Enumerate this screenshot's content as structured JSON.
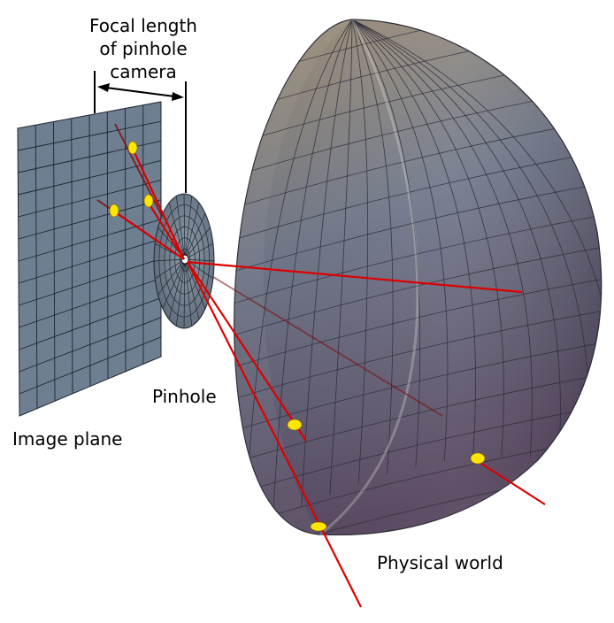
{
  "labels": {
    "focal_line1": "Focal length",
    "focal_line2": "of pinhole",
    "focal_line3": "camera",
    "pinhole": "Pinhole",
    "image_plane": "Image plane",
    "physical_world": "Physical world"
  },
  "colors": {
    "image_plane_fill": "#6f7f92",
    "grid_line": "#1e2630",
    "pinhole_disk": "#7a8796",
    "sphere_top": "#9b8b74",
    "sphere_mid": "#6e7189",
    "sphere_bottom": "#5a4a63",
    "ray": "#dd0000",
    "marker": "#ffe600"
  }
}
